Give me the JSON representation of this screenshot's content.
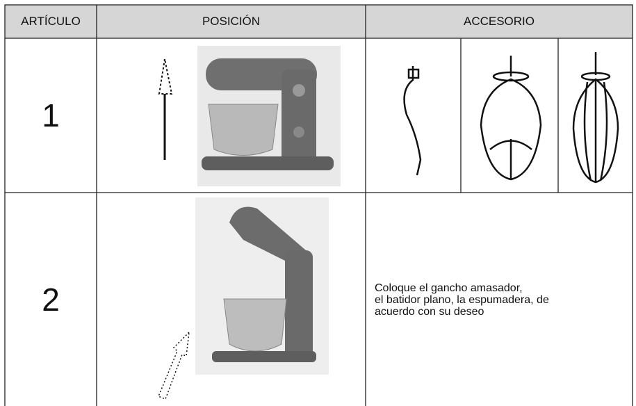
{
  "table": {
    "headers": [
      "ARTÍCULO",
      "POSICIÓN",
      "ACCESORIO"
    ],
    "rows": [
      {
        "item": "1"
      },
      {
        "item": "2",
        "accessory": "Coloque el gancho amasador,\nel batidor plano, la espumadera, de\nacuerdo con su deseo"
      }
    ]
  }
}
